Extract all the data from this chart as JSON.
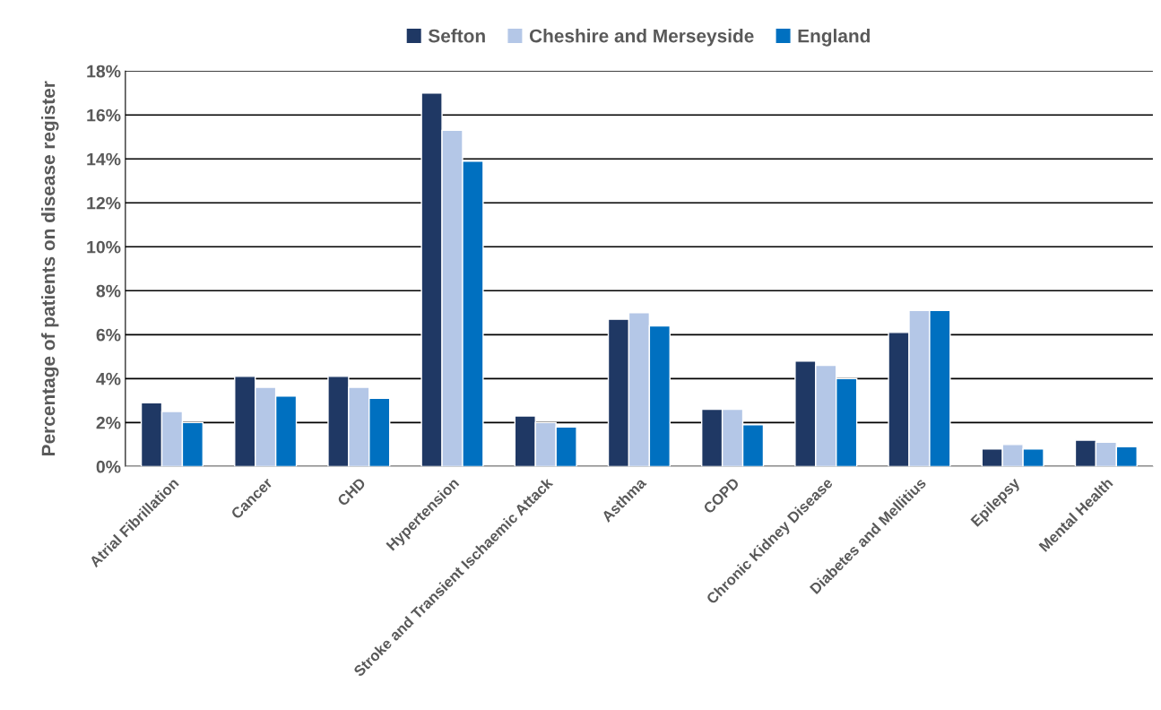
{
  "chart_data": {
    "type": "bar",
    "ylabel": "Percentage of patients on disease register",
    "categories": [
      "Atrial Fibrillation",
      "Cancer",
      "CHD",
      "Hypertension",
      "Stroke and Transient Ischaemic Attack",
      "Asthma",
      "COPD",
      "Chronic Kidney Disease",
      "Diabetes and Mellitius",
      "Epilepsy",
      "Mental Health"
    ],
    "series": [
      {
        "name": "Sefton",
        "color": "#1f3864",
        "values": [
          2.9,
          4.1,
          4.1,
          17.0,
          2.3,
          6.7,
          2.6,
          4.8,
          6.1,
          0.8,
          1.2
        ]
      },
      {
        "name": "Cheshire and Merseyside",
        "color": "#b4c7e7",
        "values": [
          2.5,
          3.6,
          3.6,
          15.3,
          2.0,
          7.0,
          2.6,
          4.6,
          7.1,
          1.0,
          1.1
        ]
      },
      {
        "name": "England",
        "color": "#0070c0",
        "values": [
          2.0,
          3.2,
          3.1,
          13.9,
          1.8,
          6.4,
          1.9,
          4.0,
          7.1,
          0.8,
          0.9
        ]
      }
    ],
    "ylim": [
      0,
      18
    ],
    "yticks": [
      {
        "value": 0,
        "label": "0%"
      },
      {
        "value": 2,
        "label": "2%"
      },
      {
        "value": 4,
        "label": "4%"
      },
      {
        "value": 6,
        "label": "6%"
      },
      {
        "value": 8,
        "label": "8%"
      },
      {
        "value": 10,
        "label": "10%"
      },
      {
        "value": 12,
        "label": "12%"
      },
      {
        "value": 14,
        "label": "14%"
      },
      {
        "value": 16,
        "label": "16%"
      },
      {
        "value": 18,
        "label": "18%"
      }
    ],
    "grid": "y",
    "legend": "top"
  }
}
